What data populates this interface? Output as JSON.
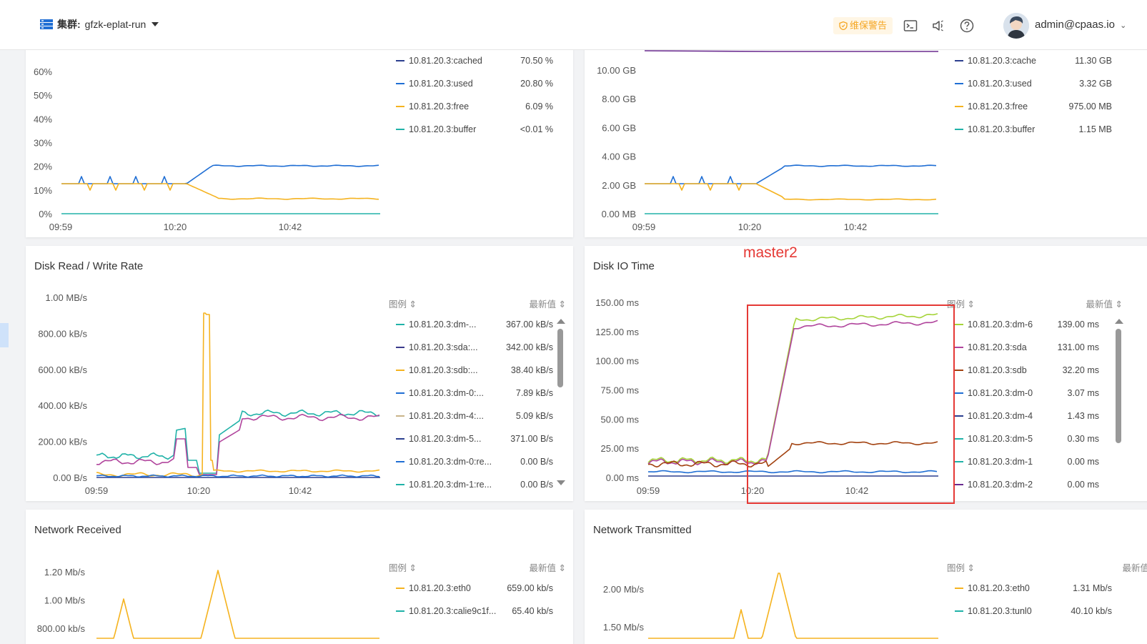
{
  "header": {
    "cluster_label": "集群:",
    "cluster_value": "gfzk-eplat-run",
    "warning_badge": "维保警告",
    "user": "admin@cpaas.io"
  },
  "legend_header": {
    "legend": "图例",
    "latest": "最新值"
  },
  "annotation": {
    "label": "master2"
  },
  "panels": {
    "memory_pct": {
      "legend": [
        {
          "name": "10.81.20.3:cached",
          "value": "70.50 %",
          "color": "#2b3f8f"
        },
        {
          "name": "10.81.20.3:used",
          "value": "20.80 %",
          "color": "#1f6ed4"
        },
        {
          "name": "10.81.20.3:free",
          "value": "6.09 %",
          "color": "#f5b320"
        },
        {
          "name": "10.81.20.3:buffer",
          "value": "<0.01 %",
          "color": "#20b2a8"
        }
      ],
      "y_ticks": [
        "60%",
        "50%",
        "40%",
        "30%",
        "20%",
        "10%",
        "0%"
      ],
      "x_ticks": [
        "09:59",
        "10:20",
        "10:42"
      ]
    },
    "memory_gb": {
      "legend": [
        {
          "name": "10.81.20.3:cache",
          "value": "11.30 GB",
          "color": "#2b3f8f"
        },
        {
          "name": "10.81.20.3:used",
          "value": "3.32 GB",
          "color": "#1f6ed4"
        },
        {
          "name": "10.81.20.3:free",
          "value": "975.00 MB",
          "color": "#f5b320"
        },
        {
          "name": "10.81.20.3:buffer",
          "value": "1.15 MB",
          "color": "#20b2a8"
        }
      ],
      "y_ticks": [
        "10.00  GB",
        "8.00  GB",
        "6.00  GB",
        "4.00  GB",
        "2.00  GB",
        "0.00  MB"
      ],
      "x_ticks": [
        "09:59",
        "10:20",
        "10:42"
      ]
    },
    "disk_rw": {
      "title": "Disk Read / Write Rate",
      "legend": [
        {
          "name": "10.81.20.3:dm-...",
          "value": "367.00 kB/s",
          "color": "#20b2a8"
        },
        {
          "name": "10.81.20.3:sda:...",
          "value": "342.00 kB/s",
          "color": "#3a3a8c"
        },
        {
          "name": "10.81.20.3:sdb:...",
          "value": "38.40 kB/s",
          "color": "#f5b320"
        },
        {
          "name": "10.81.20.3:dm-0:...",
          "value": "7.89 kB/s",
          "color": "#1f6ed4"
        },
        {
          "name": "10.81.20.3:dm-4:...",
          "value": "5.09 kB/s",
          "color": "#c9b48a"
        },
        {
          "name": "10.81.20.3:dm-5...",
          "value": "371.00 B/s",
          "color": "#2b3f8f"
        },
        {
          "name": "10.81.20.3:dm-0:re...",
          "value": "0.00 B/s",
          "color": "#1f6ed4"
        },
        {
          "name": "10.81.20.3:dm-1:re...",
          "value": "0.00 B/s",
          "color": "#20b2a8"
        }
      ],
      "y_ticks": [
        "1.00  MB/s",
        "800.00  kB/s",
        "600.00  kB/s",
        "400.00  kB/s",
        "200.00  kB/s",
        "0.00  B/s"
      ],
      "x_ticks": [
        "09:59",
        "10:20",
        "10:42"
      ]
    },
    "disk_io": {
      "title": "Disk IO Time",
      "legend": [
        {
          "name": "10.81.20.3:dm-6",
          "value": "139.00 ms",
          "color": "#a6d43a"
        },
        {
          "name": "10.81.20.3:sda",
          "value": "131.00 ms",
          "color": "#b0449c"
        },
        {
          "name": "10.81.20.3:sdb",
          "value": "32.20 ms",
          "color": "#a2410f"
        },
        {
          "name": "10.81.20.3:dm-0",
          "value": "3.07 ms",
          "color": "#1f6ed4"
        },
        {
          "name": "10.81.20.3:dm-4",
          "value": "1.43 ms",
          "color": "#2b3f8f"
        },
        {
          "name": "10.81.20.3:dm-5",
          "value": "0.30 ms",
          "color": "#20b2a8"
        },
        {
          "name": "10.81.20.3:dm-1",
          "value": "0.00 ms",
          "color": "#20b2a8"
        },
        {
          "name": "10.81.20.3:dm-2",
          "value": "0.00 ms",
          "color": "#6a2b8f"
        }
      ],
      "y_ticks": [
        "150.00  ms",
        "125.00  ms",
        "100.00  ms",
        "75.00  ms",
        "50.00  ms",
        "25.00  ms",
        "0.00  ms"
      ],
      "x_ticks": [
        "09:59",
        "10:20",
        "10:42"
      ]
    },
    "net_rx": {
      "title": "Network Received",
      "legend": [
        {
          "name": "10.81.20.3:eth0",
          "value": "659.00 kb/s",
          "color": "#f5b320"
        },
        {
          "name": "10.81.20.3:calie9c1f...",
          "value": "65.40 kb/s",
          "color": "#20b2a8"
        }
      ],
      "y_ticks": [
        "1.20  Mb/s",
        "1.00  Mb/s",
        "800.00  kb/s"
      ]
    },
    "net_tx": {
      "title": "Network Transmitted",
      "legend": [
        {
          "name": "10.81.20.3:eth0",
          "value": "1.31 Mb/s",
          "color": "#f5b320"
        },
        {
          "name": "10.81.20.3:tunl0",
          "value": "40.10 kb/s",
          "color": "#20b2a8"
        }
      ],
      "y_ticks": [
        "2.00  Mb/s",
        "1.50  Mb/s"
      ]
    }
  }
}
